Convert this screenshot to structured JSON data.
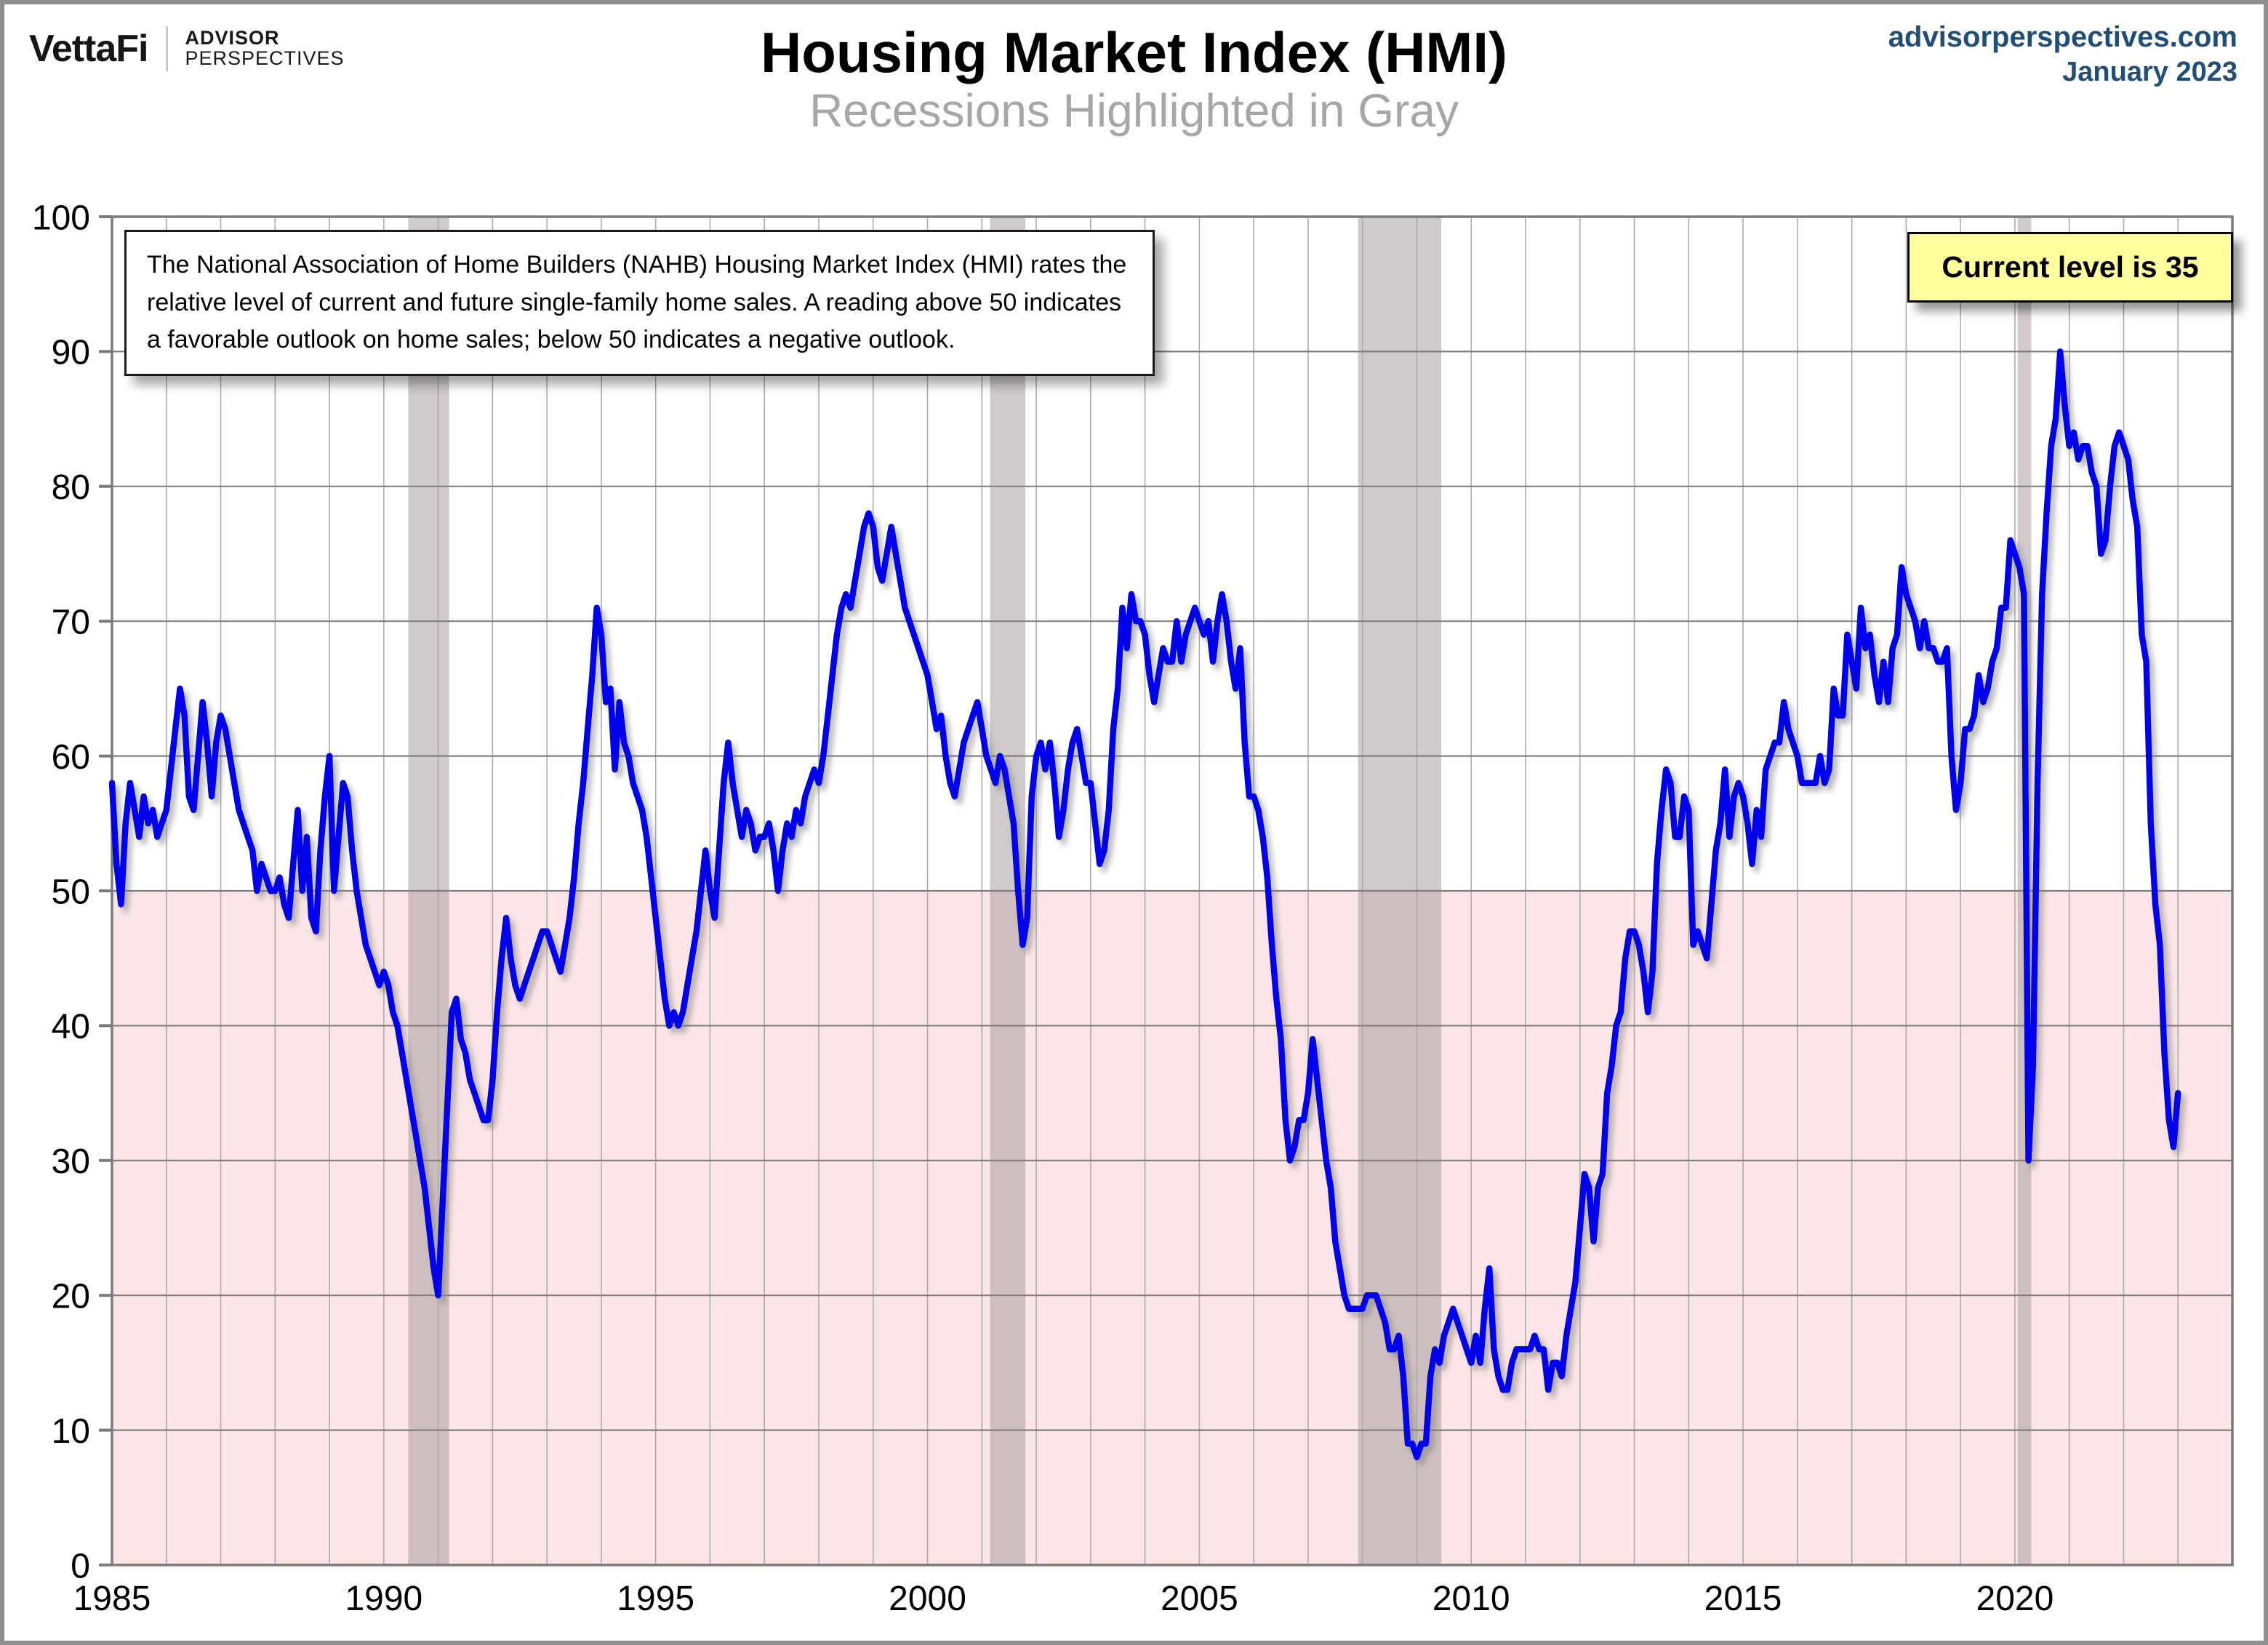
{
  "header": {
    "logo": {
      "name": "VettaFi",
      "brand_line1": "ADVISOR",
      "brand_line2": "PERSPECTIVES"
    },
    "title": "Housing Market Index (HMI)",
    "subtitle": "Recessions Highlighted in Gray",
    "source": {
      "site": "advisorperspectives.com",
      "date": "January 2023"
    }
  },
  "annotation": {
    "text": "The National Association of Home Builders (NAHB) Housing Market Index (HMI) rates the relative level of current and future single-family home sales. A reading above 50 indicates a favorable outlook on home sales; below 50 indicates a negative outlook."
  },
  "callout": {
    "text": "Current level is 35"
  },
  "colors": {
    "line": "#0202f0",
    "line_shadow": "#7a7a7a",
    "below_50_fill": "#fbe5e6",
    "recession_band": "#a99fa0",
    "h_gridline": "#808080",
    "v_gridline": "#acacac",
    "plot_border": "#7a7a7a",
    "axis_label": "#000000",
    "accent_blue": "#1f4e79",
    "callout_bg": "#ffff9e",
    "subtitle_gray": "#a6a6a6"
  },
  "chart_data": {
    "type": "line",
    "title": "Housing Market Index (HMI)",
    "subtitle": "Recessions Highlighted in Gray",
    "xlabel": "",
    "ylabel": "",
    "xlim": [
      1985,
      2024
    ],
    "ylim": [
      0,
      100
    ],
    "grid": true,
    "y_ticks": [
      0,
      10,
      20,
      30,
      40,
      50,
      60,
      70,
      80,
      90,
      100
    ],
    "x_tick_labels": [
      "1985",
      "1990",
      "1995",
      "2000",
      "2005",
      "2010",
      "2015",
      "2020"
    ],
    "x_tick_years": [
      1985,
      1990,
      1995,
      2000,
      2005,
      2010,
      2015,
      2020
    ],
    "below_threshold_shading": {
      "threshold": 50
    },
    "recessions": [
      [
        1990.45,
        1991.2
      ],
      [
        2001.15,
        2001.8
      ],
      [
        2007.92,
        2009.45
      ],
      [
        2020.05,
        2020.3
      ]
    ],
    "current_level": 35,
    "series": [
      {
        "name": "NAHB Housing Market Index",
        "frequency": "monthly",
        "start_year": 1985,
        "start_month": 1,
        "values": [
          58,
          52,
          49,
          55,
          58,
          56,
          54,
          57,
          55,
          56,
          54,
          55,
          56,
          59,
          62,
          65,
          63,
          57,
          56,
          60,
          64,
          61,
          57,
          61,
          63,
          62,
          60,
          58,
          56,
          55,
          54,
          53,
          50,
          52,
          51,
          50,
          50,
          51,
          49,
          48,
          52,
          56,
          50,
          54,
          48,
          47,
          53,
          57,
          60,
          50,
          54,
          58,
          57,
          53,
          50,
          48,
          46,
          45,
          44,
          43,
          44,
          43,
          41,
          40,
          38,
          36,
          34,
          32,
          30,
          28,
          25,
          22,
          20,
          27,
          34,
          41,
          42,
          39,
          38,
          36,
          35,
          34,
          33,
          33,
          36,
          41,
          45,
          48,
          45,
          43,
          42,
          43,
          44,
          45,
          46,
          47,
          47,
          46,
          45,
          44,
          46,
          48,
          51,
          55,
          58,
          62,
          66,
          71,
          69,
          64,
          65,
          59,
          64,
          61,
          60,
          58,
          57,
          56,
          54,
          51,
          48,
          45,
          42,
          40,
          41,
          40,
          41,
          43,
          45,
          47,
          50,
          53,
          50,
          48,
          53,
          58,
          61,
          58,
          56,
          54,
          56,
          55,
          53,
          54,
          54,
          55,
          53,
          50,
          53,
          55,
          54,
          56,
          55,
          57,
          58,
          59,
          58,
          60,
          63,
          66,
          69,
          71,
          72,
          71,
          73,
          75,
          77,
          78,
          77,
          74,
          73,
          75,
          77,
          75,
          73,
          71,
          70,
          69,
          68,
          67,
          66,
          64,
          62,
          63,
          60,
          58,
          57,
          59,
          61,
          62,
          63,
          64,
          62,
          60,
          59,
          58,
          60,
          59,
          57,
          55,
          50,
          46,
          48,
          57,
          60,
          61,
          59,
          61,
          58,
          54,
          56,
          59,
          61,
          62,
          60,
          58,
          58,
          55,
          52,
          53,
          56,
          62,
          65,
          71,
          68,
          72,
          70,
          70,
          69,
          66,
          64,
          66,
          68,
          67,
          67,
          70,
          67,
          69,
          70,
          71,
          70,
          69,
          70,
          67,
          70,
          72,
          70,
          67,
          65,
          68,
          61,
          57,
          57,
          56,
          54,
          51,
          46,
          42,
          39,
          33,
          30,
          31,
          33,
          33,
          35,
          39,
          36,
          33,
          30,
          28,
          24,
          22,
          20,
          19,
          19,
          19,
          19,
          20,
          20,
          20,
          19,
          18,
          16,
          16,
          17,
          14,
          9,
          9,
          8,
          9,
          9,
          14,
          16,
          15,
          17,
          18,
          19,
          18,
          17,
          16,
          15,
          17,
          15,
          19,
          22,
          16,
          14,
          13,
          13,
          15,
          16,
          16,
          16,
          16,
          17,
          16,
          16,
          13,
          15,
          15,
          14,
          17,
          19,
          21,
          25,
          29,
          28,
          24,
          28,
          29,
          35,
          37,
          40,
          41,
          45,
          47,
          47,
          46,
          44,
          41,
          44,
          52,
          56,
          59,
          58,
          54,
          54,
          57,
          56,
          46,
          47,
          46,
          45,
          49,
          53,
          55,
          59,
          54,
          57,
          58,
          57,
          55,
          52,
          56,
          54,
          59,
          60,
          61,
          61,
          64,
          62,
          61,
          60,
          58,
          58,
          58,
          58,
          60,
          58,
          59,
          65,
          63,
          63,
          69,
          67,
          65,
          71,
          68,
          69,
          66,
          64,
          67,
          64,
          68,
          69,
          74,
          72,
          71,
          70,
          68,
          70,
          68,
          68,
          67,
          67,
          68,
          60,
          56,
          58,
          62,
          62,
          63,
          66,
          64,
          65,
          67,
          68,
          71,
          71,
          76,
          75,
          74,
          72,
          30,
          37,
          58,
          72,
          78,
          83,
          85,
          90,
          86,
          83,
          84,
          82,
          83,
          83,
          81,
          80,
          75,
          76,
          80,
          83,
          84,
          83,
          82,
          79,
          77,
          69,
          67,
          55,
          49,
          46,
          38,
          33,
          31,
          35
        ]
      }
    ]
  }
}
